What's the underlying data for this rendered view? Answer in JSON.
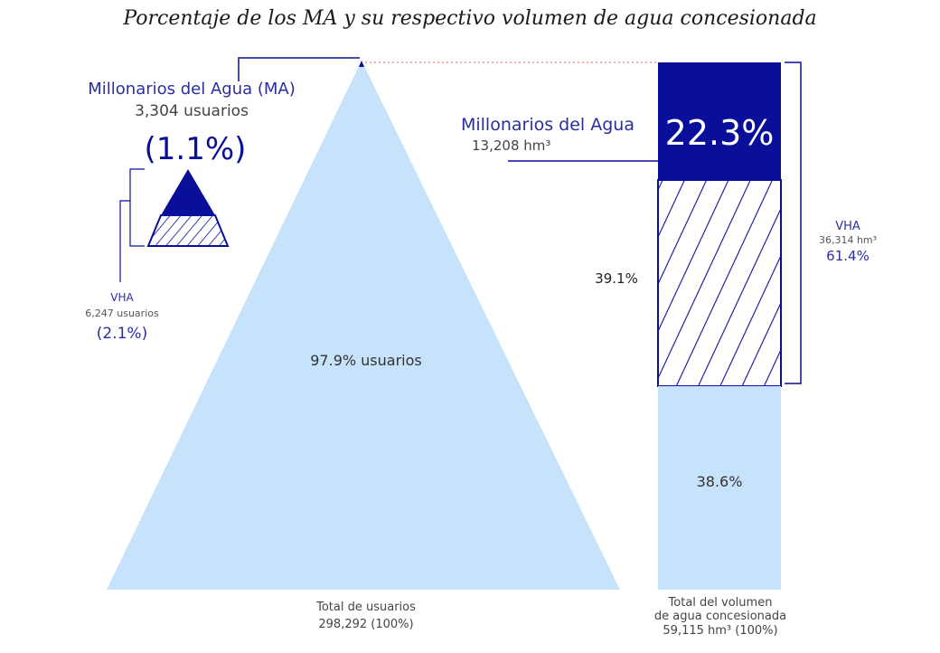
{
  "title": "Porcentaje de los MA y su respectivo volumen de agua concesionada",
  "colors": {
    "dark_blue": "#0a0f9a",
    "light_blue": "#c6e3fb",
    "text_blue": "#2b2f9e",
    "text_dark": "#333333",
    "guide_red": "#d06060"
  },
  "chart_data": [
    {
      "type": "pyramid",
      "segments": [
        {
          "name": "Millonarios del Agua (MA)",
          "users": 3304,
          "percent": 1.1
        },
        {
          "name": "VHA",
          "users": 6247,
          "percent": 2.1
        },
        {
          "name": "resto",
          "percent": 97.9
        }
      ],
      "total_users": 298292
    },
    {
      "type": "stacked-bar",
      "segments": [
        {
          "name": "Millonarios del Agua",
          "volume_hm3": 13208,
          "percent": 22.3
        },
        {
          "name": "VHA",
          "volume_hm3": 36314,
          "percent": 39.1,
          "combined_percent": 61.4
        },
        {
          "name": "resto",
          "percent": 38.6
        }
      ],
      "total_volume_hm3": 59115
    }
  ],
  "labels": {
    "ma_title": "Millonarios del Agua (MA)",
    "ma_users": "3,304 usuarios",
    "ma_pct": "(1.1%)",
    "vha_left_title": "VHA",
    "vha_left_users": "6,247 usuarios",
    "vha_left_pct": "(2.1%)",
    "pyr_rest": "97.9% usuarios",
    "pyr_total_line1": "Total de usuarios",
    "pyr_total_line2": "298,292 (100%)",
    "bar_ma_title": "Millonarios del Agua",
    "bar_ma_vol": "13,208 hm³",
    "bar_ma_pct": "22.3%",
    "bar_vha_pct": "39.1%",
    "bar_rest_pct": "38.6%",
    "vha_right_title": "VHA",
    "vha_right_vol": "36,314 hm³",
    "vha_right_pct": "61.4%",
    "bar_total_line1": "Total del volumen",
    "bar_total_line2": "de agua concesionada",
    "bar_total_line3": "59,115 hm³  (100%)"
  }
}
